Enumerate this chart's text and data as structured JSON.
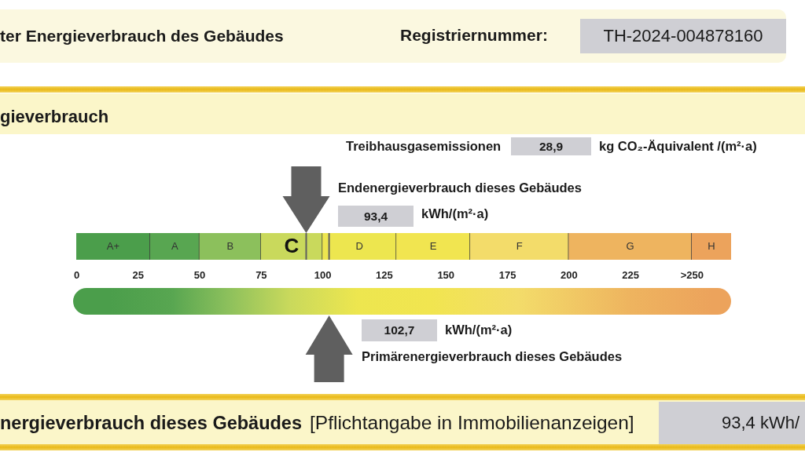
{
  "chart_data": {
    "type": "bar",
    "orientation": "horizontal",
    "stacked": true,
    "title": "ter Energieverbrauch des Gebäudes",
    "subtitle": "gieverbrauch",
    "categories": [
      null
    ],
    "series": [
      {
        "name": "A+",
        "color": "#4b9e4b",
        "values": [
          30
        ]
      },
      {
        "name": "A",
        "color": "#58a651",
        "values": [
          20
        ]
      },
      {
        "name": "B",
        "color": "#8cc05c",
        "values": [
          25
        ]
      },
      {
        "name": "C",
        "color": "#c9d95c",
        "values": [
          25
        ]
      },
      {
        "name": "D",
        "color": "#ede64f",
        "values": [
          30
        ]
      },
      {
        "name": "E",
        "color": "#f1e550",
        "values": [
          30
        ]
      },
      {
        "name": "F",
        "color": "#f3dc6a",
        "values": [
          40
        ]
      },
      {
        "name": "G",
        "color": "#eeb45f",
        "values": [
          50
        ]
      },
      {
        "name": "H",
        "color": "#eca35c",
        "values": [
          16
        ]
      }
    ],
    "xlim": [
      0,
      266
    ],
    "xticks": [
      0,
      25,
      50,
      75,
      100,
      125,
      150,
      175,
      200,
      225,
      {
        "value": 250,
        "label": ">250"
      }
    ],
    "ref_lines": [
      {
        "axis": "x",
        "value": 93.4,
        "color": "#5f5f5f"
      },
      {
        "axis": "x",
        "value": 102.7,
        "color": "#5f5f5f"
      }
    ],
    "annotations": [
      "Registriernummer:",
      "TH-2024-004878160",
      "Treibhausgasemissionen",
      "28,9",
      "kg CO₂-Äquivalent /(m²·a)",
      "Endenergieverbrauch dieses Gebäudes",
      "93,4",
      "kWh/(m²·a)",
      "102,7",
      "kWh/(m²·a)",
      "Primärenergieverbrauch dieses Gebäudes",
      "nergieverbrauch dieses Gebäudes",
      "[Pflichtangabe in Immobilienanzeigen]",
      "93,4 kWh/"
    ]
  }
}
